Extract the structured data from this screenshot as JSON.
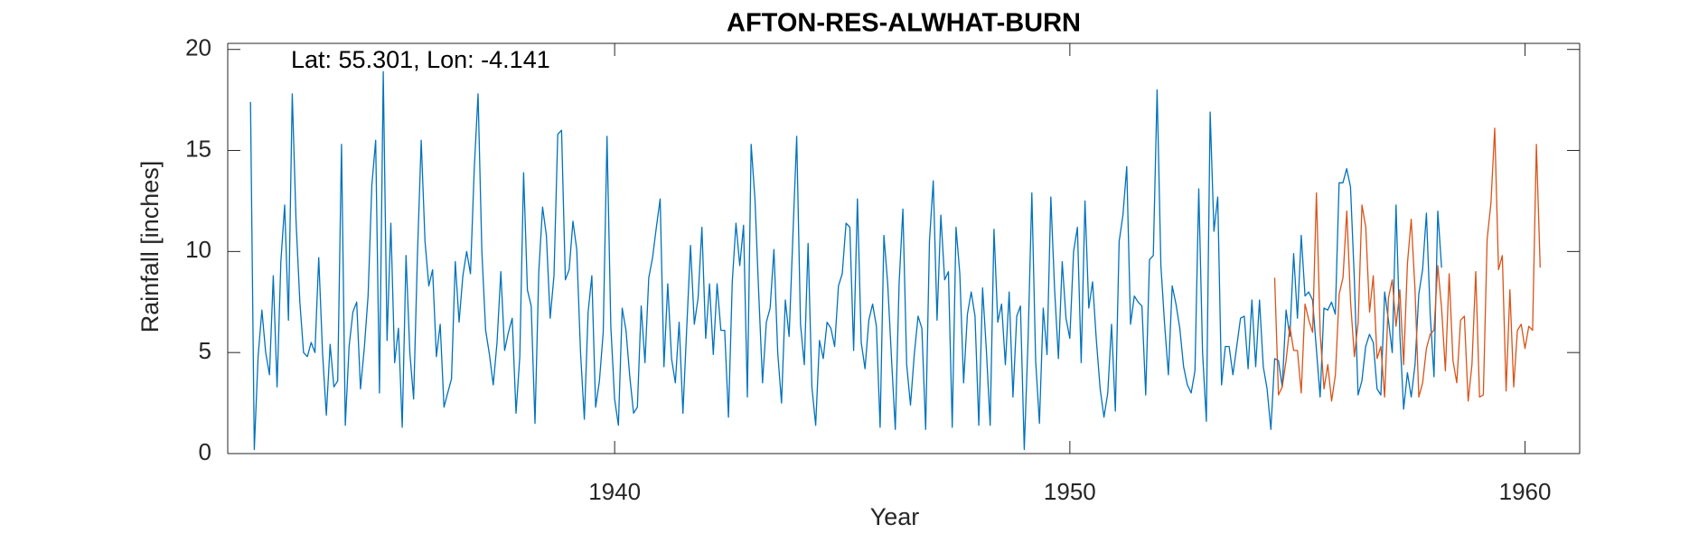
{
  "chart_data": {
    "type": "line",
    "title": "AFTON-RES-ALWHAT-BURN",
    "annotation": "Lat: 55.301, Lon: -4.141",
    "xlabel": "Year",
    "ylabel": "Rainfall [inches]",
    "xlim": [
      1931.5,
      1961.2
    ],
    "ylim": [
      0,
      20.3
    ],
    "xticks": [
      1940,
      1950,
      1960
    ],
    "xtick_labels": [
      "1940",
      "1950",
      "1960"
    ],
    "yticks": [
      0,
      5,
      10,
      15,
      20
    ],
    "ytick_labels": [
      "0",
      "5",
      "10",
      "15",
      "20"
    ],
    "grid": false,
    "colors": {
      "series1": "#0072BD",
      "series2": "#D95319",
      "axis": "#262626"
    },
    "series": [
      {
        "start_year": 1932.0,
        "step_years": 0.08333,
        "values": [
          17.4,
          0.2,
          4.8,
          7.1,
          5.0,
          3.9,
          8.8,
          3.3,
          9.5,
          12.3,
          6.6,
          17.8,
          11.5,
          7.5,
          5.0,
          4.8,
          5.5,
          5.0,
          9.7,
          5.0,
          1.9,
          5.4,
          3.3,
          3.6,
          15.3,
          1.4,
          5.3,
          7.0,
          7.5,
          3.2,
          5.2,
          7.8,
          13.3,
          15.5,
          3.0,
          18.9,
          5.6,
          11.4,
          4.5,
          6.2,
          1.3,
          9.8,
          5.0,
          2.7,
          9.8,
          15.5,
          10.5,
          8.3,
          9.1,
          4.8,
          6.4,
          2.3,
          3.0,
          3.7,
          9.5,
          6.5,
          8.8,
          10.0,
          8.9,
          14.1,
          17.8,
          10.0,
          6.1,
          4.9,
          3.4,
          5.5,
          9.0,
          5.1,
          6.0,
          6.7,
          2.0,
          4.8,
          13.9,
          8.1,
          7.3,
          1.5,
          9.0,
          12.2,
          10.8,
          6.7,
          8.8,
          15.8,
          16.0,
          8.6,
          9.1,
          11.5,
          10.1,
          5.0,
          1.7,
          7.0,
          8.8,
          2.3,
          3.6,
          6.0,
          15.7,
          6.3,
          2.7,
          1.4,
          7.2,
          6.1,
          3.8,
          2.0,
          2.3,
          7.3,
          4.5,
          8.7,
          9.7,
          11.2,
          12.6,
          4.3,
          8.4,
          4.7,
          3.5,
          6.5,
          2.0,
          6.2,
          10.3,
          6.4,
          7.7,
          11.2,
          5.7,
          8.4,
          4.9,
          8.4,
          6.1,
          6.1,
          1.8,
          8.5,
          11.4,
          9.3,
          11.3,
          2.8,
          15.3,
          12.6,
          7.9,
          3.5,
          6.5,
          7.2,
          10.1,
          5.0,
          2.5,
          7.6,
          5.8,
          10.8,
          15.7,
          6.4,
          4.4,
          10.4,
          3.3,
          1.4,
          5.6,
          4.7,
          6.5,
          6.2,
          5.3,
          8.3,
          8.9,
          11.4,
          11.2,
          5.1,
          12.6,
          5.5,
          4.2,
          6.6,
          7.4,
          6.3,
          1.3,
          10.8,
          8.4,
          4.7,
          1.2,
          8.4,
          12.1,
          4.4,
          2.4,
          4.9,
          6.8,
          6.2,
          1.2,
          10.5,
          13.5,
          6.6,
          11.8,
          8.6,
          9.0,
          1.3,
          11.2,
          8.9,
          3.5,
          6.9,
          8.0,
          6.8,
          1.4,
          8.2,
          5.1,
          1.4,
          11.1,
          6.5,
          7.4,
          4.4,
          8.0,
          2.8,
          6.8,
          7.3,
          0.2,
          5.6,
          12.9,
          4.6,
          1.5,
          7.2,
          4.9,
          12.7,
          8.1,
          4.7,
          9.5,
          6.7,
          5.7,
          10.0,
          11.2,
          4.5,
          12.5,
          7.2,
          8.5,
          5.6,
          3.2,
          1.8,
          3.0,
          6.4,
          2.1,
          10.5,
          11.8,
          14.2,
          6.4,
          7.8,
          7.5,
          7.3,
          2.9,
          9.6,
          9.8,
          18.0,
          9.3,
          6.4,
          3.9,
          8.3,
          7.4,
          6.2,
          4.3,
          3.4,
          3.0,
          4.1,
          13.1,
          5.0,
          1.6,
          16.9,
          11.0,
          12.7,
          3.4,
          5.3,
          5.3,
          3.9,
          5.3,
          6.7,
          6.8,
          4.2,
          7.6,
          4.3,
          7.6,
          4.3,
          3.2,
          1.2,
          4.7,
          4.6,
          3.3,
          7.1,
          5.8,
          9.9,
          6.7,
          10.8,
          7.8,
          8.0,
          7.6,
          5.2,
          2.8,
          7.2,
          7.1,
          7.5,
          6.9,
          13.4,
          13.4,
          14.1,
          13.2,
          8.7,
          2.9,
          3.6,
          5.3,
          5.9,
          5.5,
          3.2,
          2.9,
          8.0,
          6.6,
          5.0,
          12.3,
          5.9,
          2.2,
          4.0,
          2.8,
          4.4,
          7.9,
          9.1,
          11.9,
          6.9,
          3.8,
          12.0,
          9.2
        ]
      },
      {
        "start_year": 1954.5,
        "step_years": 0.08333,
        "values": [
          8.7,
          2.9,
          3.3,
          4.6,
          6.3,
          5.1,
          5.1,
          3.0,
          7.4,
          6.6,
          6.0,
          12.9,
          5.9,
          3.2,
          4.4,
          2.6,
          3.9,
          7.9,
          8.7,
          12.0,
          7.5,
          4.8,
          6.5,
          12.3,
          11.2,
          7.0,
          8.8,
          4.7,
          5.3,
          2.8,
          7.7,
          8.6,
          6.3,
          8.1,
          4.4,
          9.4,
          11.6,
          8.1,
          2.8,
          3.5,
          5.2,
          5.9,
          6.1,
          9.3,
          7.2,
          4.1,
          8.9,
          4.6,
          3.5,
          6.6,
          6.8,
          2.6,
          4.4,
          9.0,
          2.8,
          2.9,
          10.6,
          12.4,
          16.1,
          9.1,
          9.8,
          3.1,
          8.1,
          3.3,
          6.1,
          6.4,
          5.2,
          6.3,
          6.1,
          15.3,
          9.2
        ]
      }
    ]
  }
}
